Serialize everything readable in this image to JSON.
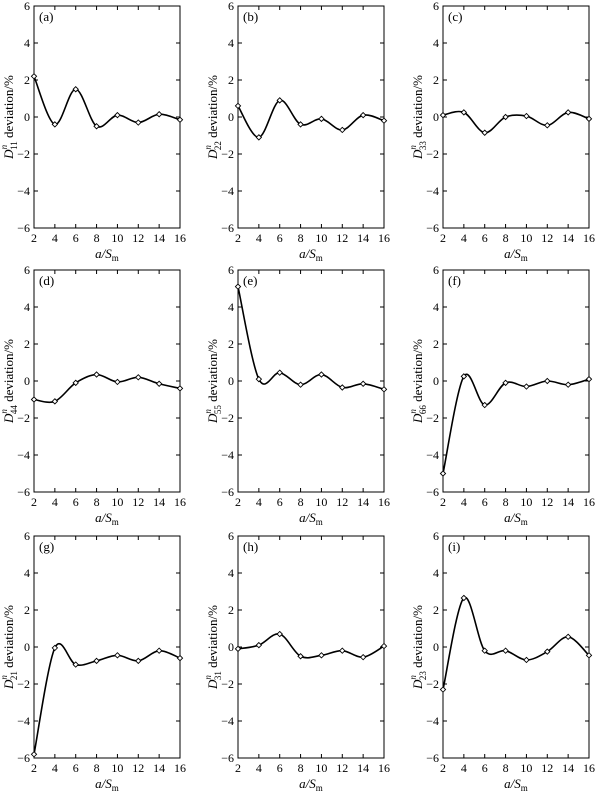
{
  "chart_data": [
    {
      "type": "line",
      "panel_label": "(a)",
      "ylabel_sub": "11",
      "ylabel_sup": "n",
      "ylabel_rest": " deviation/%",
      "xlabel": "a/S",
      "xlabel_sub": "m",
      "x": [
        2,
        4,
        6,
        8,
        10,
        12,
        14,
        16
      ],
      "values": [
        2.2,
        -0.4,
        1.5,
        -0.5,
        0.1,
        -0.3,
        0.15,
        -0.15
      ],
      "xlim": [
        2,
        16
      ],
      "ylim": [
        -6,
        6
      ],
      "xticks": [
        "2",
        "4",
        "6",
        "8",
        "10",
        "12",
        "14",
        "16"
      ],
      "yticks": [
        "-6",
        "-4",
        "-2",
        "0",
        "2",
        "4",
        "6"
      ]
    },
    {
      "type": "line",
      "panel_label": "(b)",
      "ylabel_sub": "22",
      "ylabel_sup": "n",
      "ylabel_rest": " deviation/%",
      "xlabel": "a/S",
      "xlabel_sub": "m",
      "x": [
        2,
        4,
        6,
        8,
        10,
        12,
        14,
        16
      ],
      "values": [
        0.6,
        -1.1,
        0.9,
        -0.4,
        -0.1,
        -0.7,
        0.1,
        -0.2
      ],
      "xlim": [
        2,
        16
      ],
      "ylim": [
        -6,
        6
      ],
      "xticks": [
        "2",
        "4",
        "6",
        "8",
        "10",
        "12",
        "14",
        "16"
      ],
      "yticks": [
        "-6",
        "-4",
        "-2",
        "0",
        "2",
        "4",
        "6"
      ]
    },
    {
      "type": "line",
      "panel_label": "(c)",
      "ylabel_sub": "33",
      "ylabel_sup": "n",
      "ylabel_rest": " deviation/%",
      "xlabel": "a/S",
      "xlabel_sub": "m",
      "x": [
        2,
        4,
        6,
        8,
        10,
        12,
        14,
        16
      ],
      "values": [
        0.1,
        0.25,
        -0.85,
        0.0,
        0.05,
        -0.45,
        0.25,
        -0.1
      ],
      "xlim": [
        2,
        16
      ],
      "ylim": [
        -6,
        6
      ],
      "xticks": [
        "2",
        "4",
        "6",
        "8",
        "10",
        "12",
        "14",
        "16"
      ],
      "yticks": [
        "-6",
        "-4",
        "-2",
        "0",
        "2",
        "4",
        "6"
      ]
    },
    {
      "type": "line",
      "panel_label": "(d)",
      "ylabel_sub": "44",
      "ylabel_sup": "n",
      "ylabel_rest": " deviation/%",
      "xlabel": "a/S",
      "xlabel_sub": "m",
      "x": [
        2,
        4,
        6,
        8,
        10,
        12,
        14,
        16
      ],
      "values": [
        -1.0,
        -1.1,
        -0.1,
        0.35,
        -0.05,
        0.2,
        -0.15,
        -0.4
      ],
      "xlim": [
        2,
        16
      ],
      "ylim": [
        -6,
        6
      ],
      "xticks": [
        "2",
        "4",
        "6",
        "8",
        "10",
        "12",
        "14",
        "16"
      ],
      "yticks": [
        "-6",
        "-4",
        "-2",
        "0",
        "2",
        "4",
        "6"
      ]
    },
    {
      "type": "line",
      "panel_label": "(e)",
      "ylabel_sub": "55",
      "ylabel_sup": "n",
      "ylabel_rest": " deviation/%",
      "xlabel": "a/S",
      "xlabel_sub": "m",
      "x": [
        2,
        4,
        6,
        8,
        10,
        12,
        14,
        16
      ],
      "values": [
        5.1,
        0.1,
        0.45,
        -0.2,
        0.35,
        -0.35,
        -0.15,
        -0.45
      ],
      "xlim": [
        2,
        16
      ],
      "ylim": [
        -6,
        6
      ],
      "xticks": [
        "2",
        "4",
        "6",
        "8",
        "10",
        "12",
        "14",
        "16"
      ],
      "yticks": [
        "-6",
        "-4",
        "-2",
        "0",
        "2",
        "4",
        "6"
      ]
    },
    {
      "type": "line",
      "panel_label": "(f)",
      "ylabel_sub": "66",
      "ylabel_sup": "n",
      "ylabel_rest": " deviation/%",
      "xlabel": "a/S",
      "xlabel_sub": "m",
      "x": [
        2,
        4,
        6,
        8,
        10,
        12,
        14,
        16
      ],
      "values": [
        -5.0,
        0.25,
        -1.3,
        -0.1,
        -0.3,
        0.0,
        -0.2,
        0.1
      ],
      "xlim": [
        2,
        16
      ],
      "ylim": [
        -6,
        6
      ],
      "xticks": [
        "2",
        "4",
        "6",
        "8",
        "10",
        "12",
        "14",
        "16"
      ],
      "yticks": [
        "-6",
        "-4",
        "-2",
        "0",
        "2",
        "4",
        "6"
      ]
    },
    {
      "type": "line",
      "panel_label": "(g)",
      "ylabel_sub": "21",
      "ylabel_sup": "n",
      "ylabel_rest": " deviation/%",
      "xlabel": "a/S",
      "xlabel_sub": "m",
      "x": [
        2,
        4,
        6,
        8,
        10,
        12,
        14,
        16
      ],
      "values": [
        -5.8,
        -0.05,
        -0.95,
        -0.75,
        -0.45,
        -0.75,
        -0.2,
        -0.6
      ],
      "xlim": [
        2,
        16
      ],
      "ylim": [
        -6,
        6
      ],
      "xticks": [
        "2",
        "4",
        "6",
        "8",
        "10",
        "12",
        "14",
        "16"
      ],
      "yticks": [
        "-6",
        "-4",
        "-2",
        "0",
        "2",
        "4",
        "6"
      ]
    },
    {
      "type": "line",
      "panel_label": "(h)",
      "ylabel_sub": "31",
      "ylabel_sup": "n",
      "ylabel_rest": " deviation/%",
      "xlabel": "a/S",
      "xlabel_sub": "m",
      "x": [
        2,
        4,
        6,
        8,
        10,
        12,
        14,
        16
      ],
      "values": [
        -0.1,
        0.1,
        0.7,
        -0.5,
        -0.45,
        -0.2,
        -0.55,
        0.05
      ],
      "xlim": [
        2,
        16
      ],
      "ylim": [
        -6,
        6
      ],
      "xticks": [
        "2",
        "4",
        "6",
        "8",
        "10",
        "12",
        "14",
        "16"
      ],
      "yticks": [
        "-6",
        "-4",
        "-2",
        "0",
        "2",
        "4",
        "6"
      ]
    },
    {
      "type": "line",
      "panel_label": "(i)",
      "ylabel_sub": "23",
      "ylabel_sup": "n",
      "ylabel_rest": " deviation/%",
      "xlabel": "a/S",
      "xlabel_sub": "m",
      "x": [
        2,
        4,
        6,
        8,
        10,
        12,
        14,
        16
      ],
      "values": [
        -2.3,
        2.65,
        -0.2,
        -0.2,
        -0.7,
        -0.25,
        0.55,
        -0.45
      ],
      "xlim": [
        2,
        16
      ],
      "ylim": [
        -6,
        6
      ],
      "xticks": [
        "2",
        "4",
        "6",
        "8",
        "10",
        "12",
        "14",
        "16"
      ],
      "yticks": [
        "-6",
        "-4",
        "-2",
        "0",
        "2",
        "4",
        "6"
      ]
    }
  ]
}
